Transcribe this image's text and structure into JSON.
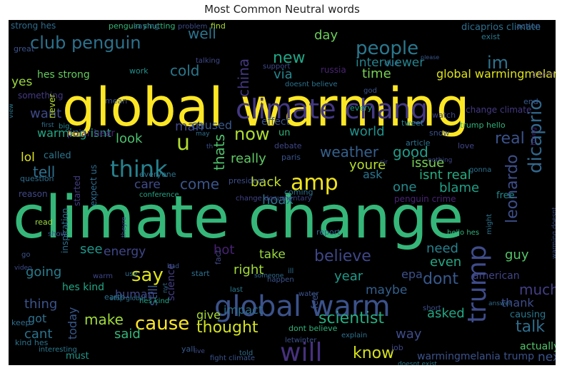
{
  "chart_data": {
    "type": "wordcloud",
    "title": "Most Common Neutral words",
    "background": "#000000",
    "words": [
      {
        "text": "climate change",
        "color": "#35b779"
      },
      {
        "text": "global warming",
        "color": "#fde725"
      },
      {
        "text": "climate chang",
        "color": "#443983"
      },
      {
        "text": "global warm",
        "color": "#3b528b"
      },
      {
        "text": "trump",
        "color": "#3e4c8a"
      },
      {
        "text": "amp",
        "color": "#f1e51d"
      },
      {
        "text": "think",
        "color": "#26818e"
      },
      {
        "text": "will",
        "color": "#46317e"
      },
      {
        "text": "people",
        "color": "#2a788e"
      },
      {
        "text": "dicaprio",
        "color": "#31688e"
      },
      {
        "text": "leonardo",
        "color": "#3d4e8a"
      },
      {
        "text": "say",
        "color": "#dde318"
      },
      {
        "text": "cause",
        "color": "#fde725"
      },
      {
        "text": "know",
        "color": "#d5e21a"
      },
      {
        "text": "club penguin",
        "color": "#2c728e"
      },
      {
        "text": "new",
        "color": "#21a685"
      },
      {
        "text": "im",
        "color": "#2c738e"
      },
      {
        "text": "u",
        "color": "#b0dd2f"
      },
      {
        "text": "now",
        "color": "#addc30"
      },
      {
        "text": "real",
        "color": "#3b528b"
      },
      {
        "text": "good",
        "color": "#1f9e89"
      },
      {
        "text": "weather",
        "color": "#35608d"
      },
      {
        "text": "believe",
        "color": "#3f4788"
      },
      {
        "text": "dont",
        "color": "#38598c"
      },
      {
        "text": "much",
        "color": "#433e85"
      },
      {
        "text": "talk",
        "color": "#2e6e8e"
      },
      {
        "text": "thought",
        "color": "#d2e21b"
      },
      {
        "text": "scientist",
        "color": "#26ad81"
      },
      {
        "text": "thats",
        "color": "#4ec36b"
      },
      {
        "text": "china",
        "color": "#453781"
      },
      {
        "text": "cold",
        "color": "#2a788e"
      },
      {
        "text": "well",
        "color": "#2c738e"
      },
      {
        "text": "day",
        "color": "#6ccd5a"
      },
      {
        "text": "time",
        "color": "#77d153"
      },
      {
        "text": "interviewer",
        "color": "#25848e"
      },
      {
        "text": "via",
        "color": "#24868e"
      },
      {
        "text": "yes",
        "color": "#9bd93c"
      },
      {
        "text": "want",
        "color": "#3e4989"
      },
      {
        "text": "look",
        "color": "#4ac16d"
      },
      {
        "text": "man",
        "color": "#404688"
      },
      {
        "text": "caused",
        "color": "#38598c"
      },
      {
        "text": "warming isnt",
        "color": "#22a884"
      },
      {
        "text": "lol",
        "color": "#dde318"
      },
      {
        "text": "tell",
        "color": "#2d708e"
      },
      {
        "text": "care",
        "color": "#3e4c8a"
      },
      {
        "text": "come",
        "color": "#3a548c"
      },
      {
        "text": "really",
        "color": "#5ec962"
      },
      {
        "text": "back",
        "color": "#c2df23"
      },
      {
        "text": "youre",
        "color": "#b5de2b"
      },
      {
        "text": "ask",
        "color": "#2b758e"
      },
      {
        "text": "issue",
        "color": "#75d054"
      },
      {
        "text": "isnt real",
        "color": "#26ad81"
      },
      {
        "text": "one",
        "color": "#238a8d"
      },
      {
        "text": "blame",
        "color": "#1fa187"
      },
      {
        "text": "world",
        "color": "#21918c"
      },
      {
        "text": "hoax",
        "color": "#2c728e"
      },
      {
        "text": "hot",
        "color": "#482173"
      },
      {
        "text": "see",
        "color": "#1f968b"
      },
      {
        "text": "energy",
        "color": "#3f4788"
      },
      {
        "text": "right",
        "color": "#a2da37"
      },
      {
        "text": "take",
        "color": "#9bd93c"
      },
      {
        "text": "need",
        "color": "#26818e"
      },
      {
        "text": "even",
        "color": "#22a884"
      },
      {
        "text": "guy",
        "color": "#54c568"
      },
      {
        "text": "going",
        "color": "#287d8e"
      },
      {
        "text": "still",
        "color": "#39558c"
      },
      {
        "text": "human",
        "color": "#3f4788"
      },
      {
        "text": "science",
        "color": "#433e85"
      },
      {
        "text": "year",
        "color": "#1e9b8a"
      },
      {
        "text": "maybe",
        "color": "#34608d"
      },
      {
        "text": "thing",
        "color": "#3a548c"
      },
      {
        "text": "make",
        "color": "#a0da39"
      },
      {
        "text": "said",
        "color": "#34b679"
      },
      {
        "text": "impact",
        "color": "#2e6e8e"
      },
      {
        "text": "asked",
        "color": "#22a884"
      },
      {
        "text": "way",
        "color": "#3e4c8a"
      },
      {
        "text": "cant",
        "color": "#2c728e"
      },
      {
        "text": "today",
        "color": "#38598c"
      },
      {
        "text": "epa",
        "color": "#3b528b"
      },
      {
        "text": "american",
        "color": "#414487"
      },
      {
        "text": "thank",
        "color": "#3d4d8a"
      },
      {
        "text": "actually",
        "color": "#52c569"
      },
      {
        "text": "next",
        "color": "#3a548c"
      },
      {
        "text": "give",
        "color": "#a8db34"
      },
      {
        "text": "got",
        "color": "#2d708e"
      },
      {
        "text": "causing",
        "color": "#2a778e"
      },
      {
        "text": "hes kind",
        "color": "#22a785"
      },
      {
        "text": "must",
        "color": "#1f998a"
      },
      {
        "text": "warmingmelania trump",
        "color": "#3b528b"
      },
      {
        "text": "global warmingmelania",
        "color": "#dde318"
      },
      {
        "text": "change climate",
        "color": "#443983"
      },
      {
        "text": "hes strong",
        "color": "#65cb5e"
      },
      {
        "text": "strong hes",
        "color": "#2f6c8e"
      },
      {
        "text": "penguin shutting",
        "color": "#35b779"
      },
      {
        "text": "saying",
        "color": "#31688e"
      },
      {
        "text": "find",
        "color": "#addc30"
      },
      {
        "text": "dicaprios climate",
        "color": "#2d708e"
      },
      {
        "text": "action",
        "color": "#38598c"
      },
      {
        "text": "exist",
        "color": "#2a788e"
      },
      {
        "text": "great",
        "color": "#3a538b"
      },
      {
        "text": "work",
        "color": "#21918c"
      },
      {
        "text": "talking",
        "color": "#3f4889"
      },
      {
        "text": "russia",
        "color": "#482374"
      },
      {
        "text": "due",
        "color": "#2e6e8e"
      },
      {
        "text": "support",
        "color": "#3e4a89"
      },
      {
        "text": "please",
        "color": "#39568c"
      },
      {
        "text": "something",
        "color": "#443a83"
      },
      {
        "text": "never",
        "color": "#b8de29"
      },
      {
        "text": "mean",
        "color": "#3a538b"
      },
      {
        "text": "doesnt believe",
        "color": "#2c728e"
      },
      {
        "text": "god",
        "color": "#3b528b"
      },
      {
        "text": "every",
        "color": "#1fa088"
      },
      {
        "text": "damn",
        "color": "#46307e"
      },
      {
        "text": "end",
        "color": "#38598c"
      },
      {
        "text": "watch",
        "color": "#3f4788"
      },
      {
        "text": "tweet",
        "color": "#25858e"
      },
      {
        "text": "big",
        "color": "#24868e"
      },
      {
        "text": "first",
        "color": "#2e6e8e"
      },
      {
        "text": "polar bear",
        "color": "#482374"
      },
      {
        "text": "called",
        "color": "#2a768e"
      },
      {
        "text": "effect",
        "color": "#3a548c"
      },
      {
        "text": "un",
        "color": "#31b57b"
      },
      {
        "text": "snow",
        "color": "#3b528b"
      },
      {
        "text": "trump hello",
        "color": "#2fb47c"
      },
      {
        "text": "debate",
        "color": "#3f4788"
      },
      {
        "text": "article",
        "color": "#2c738e"
      },
      {
        "text": "love",
        "color": "#404588"
      },
      {
        "text": "paris",
        "color": "#3a548c"
      },
      {
        "text": "nothing",
        "color": "#3f4788"
      },
      {
        "text": "started",
        "color": "#433e85"
      },
      {
        "text": "expect us",
        "color": "#2f6b8e"
      },
      {
        "text": "president",
        "color": "#3d4e8a"
      },
      {
        "text": "question",
        "color": "#2e6e8e"
      },
      {
        "text": "reason",
        "color": "#3f4889"
      },
      {
        "text": "conference",
        "color": "#22a785"
      },
      {
        "text": "change documentary",
        "color": "#414487"
      },
      {
        "text": "coming",
        "color": "#2d708e"
      },
      {
        "text": "penguin crime",
        "color": "#482475"
      },
      {
        "text": "free",
        "color": "#238a8d"
      },
      {
        "text": "read",
        "color": "#9bd93c"
      },
      {
        "text": "show",
        "color": "#3b528b"
      },
      {
        "text": "theyre",
        "color": "#3a548c"
      },
      {
        "text": "report",
        "color": "#31688e"
      },
      {
        "text": "hello hes",
        "color": "#31b57b"
      },
      {
        "text": "might",
        "color": "#2c738e"
      },
      {
        "text": "go",
        "color": "#3b528b"
      },
      {
        "text": "video",
        "color": "#3e4c8a"
      },
      {
        "text": "use",
        "color": "#2e6e8e"
      },
      {
        "text": "warm",
        "color": "#3f4788"
      },
      {
        "text": "start",
        "color": "#2d708e"
      },
      {
        "text": "happen",
        "color": "#3a548c"
      },
      {
        "text": "someone",
        "color": "#2f6c8e"
      },
      {
        "text": "last",
        "color": "#2a788e"
      },
      {
        "text": "water",
        "color": "#3b528b"
      },
      {
        "text": "earth",
        "color": "#2d708e"
      },
      {
        "text": "hes kind",
        "color": "#22a785"
      },
      {
        "text": "stop global",
        "color": "#2c728e"
      },
      {
        "text": "short",
        "color": "#3d4e8a"
      },
      {
        "text": "answer",
        "color": "#31688e"
      },
      {
        "text": "keep",
        "color": "#2e6e8e"
      },
      {
        "text": "kind hes",
        "color": "#2c738e"
      },
      {
        "text": "interesting",
        "color": "#2a788e"
      },
      {
        "text": "yall",
        "color": "#38598c"
      },
      {
        "text": "dont believe",
        "color": "#2fb47c"
      },
      {
        "text": "letwinter",
        "color": "#3b528b"
      },
      {
        "text": "explain",
        "color": "#2d708e"
      },
      {
        "text": "job",
        "color": "#3f4788"
      },
      {
        "text": "fight climate",
        "color": "#3a548c"
      },
      {
        "text": "live",
        "color": "#3e4c8a"
      },
      {
        "text": "told",
        "color": "#2e6e8e"
      },
      {
        "text": "doesnt exist",
        "color": "#2a788e"
      },
      {
        "text": "feel",
        "color": "#3b528b"
      },
      {
        "text": "inspiration",
        "color": "#2d708e"
      },
      {
        "text": "fact",
        "color": "#3f4788"
      },
      {
        "text": "ill",
        "color": "#2f6c8e"
      },
      {
        "text": "bad",
        "color": "#3a548c"
      },
      {
        "text": "nyt",
        "color": "#31688e"
      },
      {
        "text": "everyone",
        "color": "#2c738e"
      },
      {
        "text": "problem",
        "color": "#3d4e8a"
      },
      {
        "text": "may",
        "color": "#2e6e8e"
      },
      {
        "text": "th",
        "color": "#3b528b"
      },
      {
        "text": "sir",
        "color": "#3f4788"
      },
      {
        "text": "gonna",
        "color": "#2d708e"
      },
      {
        "text": "hiring",
        "color": "#482374"
      },
      {
        "text": "view",
        "color": "#2a788e"
      },
      {
        "text": "warming doesnt",
        "color": "#3b528b"
      },
      {
        "text": "change isnt",
        "color": "#2e6e8e"
      },
      {
        "text": "penguin shut",
        "color": "#2c728e"
      },
      {
        "text": "donald trump",
        "color": "#3f4788"
      }
    ]
  }
}
